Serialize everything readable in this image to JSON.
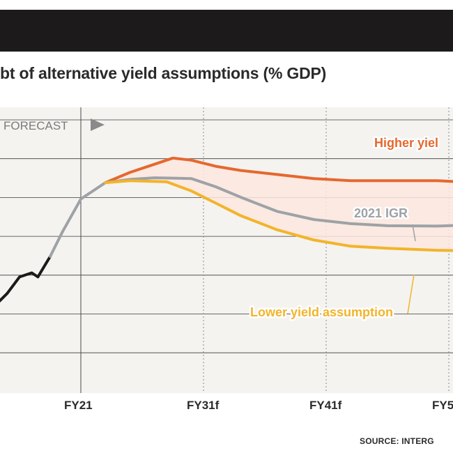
{
  "title": "bt of alternative yield assumptions (% GDP)",
  "source": "SOURCE: INTERG",
  "forecast_label": "FORECAST",
  "colors": {
    "header_bar": "#1c1a1b",
    "plot_background": "#f4f3f0",
    "higher_yield": "#e5682e",
    "igr": "#9ea2a6",
    "lower_yield": "#f2b42a",
    "history": "#1a1a1a",
    "band_fill": "#fbe6df"
  },
  "chart_data": {
    "type": "line",
    "title": "bt of alternative yield assumptions (% GDP)",
    "xlabel": "",
    "ylabel": "",
    "x_ticks": [
      "FY21",
      "FY31f",
      "FY41f",
      "FY5"
    ],
    "grid": true,
    "x_range": [
      2014,
      2057
    ],
    "y_range": [
      0,
      7
    ],
    "forecast_start": "FY21",
    "series": [
      {
        "name": "",
        "role": "history",
        "color": "#1a1a1a",
        "points": [
          [
            2014,
            2.1
          ],
          [
            2015,
            2.4
          ],
          [
            2016,
            2.8
          ],
          [
            2017,
            2.9
          ],
          [
            2017.5,
            2.8
          ],
          [
            2018.5,
            3.3
          ]
        ]
      },
      {
        "name": "",
        "role": "transition",
        "color": "#9ea2a6",
        "points": [
          [
            2018.5,
            3.3
          ],
          [
            2019.5,
            3.9
          ],
          [
            2021,
            4.7
          ],
          [
            2023,
            5.1
          ]
        ]
      },
      {
        "name": "Higher yiel",
        "color": "#e5682e",
        "points": [
          [
            2023,
            5.1
          ],
          [
            2025,
            5.35
          ],
          [
            2027,
            5.55
          ],
          [
            2028.5,
            5.7
          ],
          [
            2030,
            5.65
          ],
          [
            2032,
            5.5
          ],
          [
            2034,
            5.4
          ],
          [
            2037,
            5.3
          ],
          [
            2040,
            5.2
          ],
          [
            2043,
            5.15
          ],
          [
            2046,
            5.15
          ],
          [
            2050,
            5.15
          ],
          [
            2052,
            5.12
          ]
        ]
      },
      {
        "name": "2021 IGR",
        "color": "#9ea2a6",
        "points": [
          [
            2023,
            5.1
          ],
          [
            2025,
            5.18
          ],
          [
            2027,
            5.22
          ],
          [
            2030,
            5.2
          ],
          [
            2032,
            5.0
          ],
          [
            2034,
            4.75
          ],
          [
            2037,
            4.4
          ],
          [
            2040,
            4.2
          ],
          [
            2043,
            4.1
          ],
          [
            2046,
            4.05
          ],
          [
            2050,
            4.04
          ],
          [
            2052,
            4.06
          ]
        ]
      },
      {
        "name": "Lower yield assumption",
        "color": "#f2b42a",
        "points": [
          [
            2023,
            5.1
          ],
          [
            2025,
            5.15
          ],
          [
            2028,
            5.12
          ],
          [
            2030,
            4.9
          ],
          [
            2032,
            4.6
          ],
          [
            2034,
            4.3
          ],
          [
            2037,
            3.95
          ],
          [
            2040,
            3.7
          ],
          [
            2043,
            3.55
          ],
          [
            2046,
            3.5
          ],
          [
            2050,
            3.45
          ],
          [
            2052,
            3.44
          ]
        ]
      }
    ],
    "labels": [
      {
        "text": "Higher yiel",
        "color": "#e5682e"
      },
      {
        "text": "2021 IGR",
        "color": "#9ea2a6"
      },
      {
        "text": "Lower yield assumption",
        "color": "#f2b42a"
      }
    ]
  }
}
